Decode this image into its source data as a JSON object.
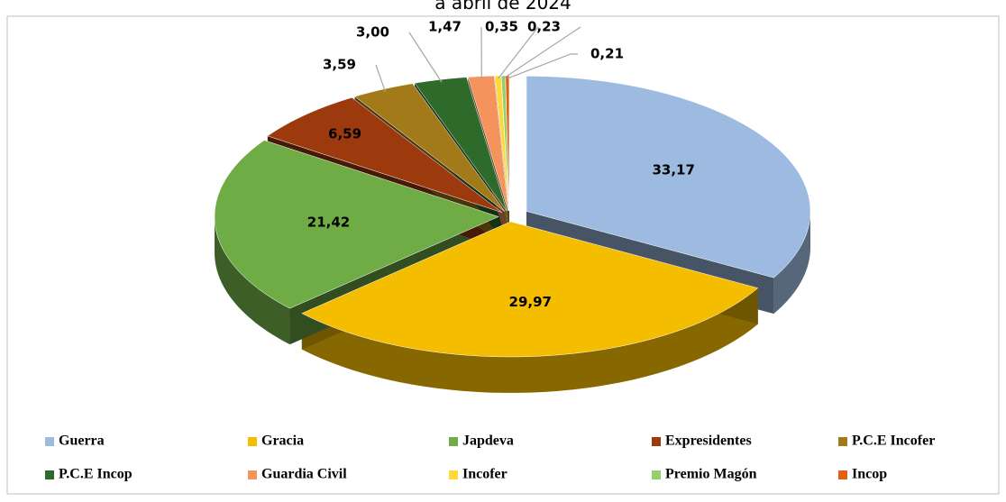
{
  "chart_data": {
    "type": "pie",
    "title": "a abril de 2024",
    "categories": [
      "Guerra",
      "Gracia",
      "Japdeva",
      "Expresidentes",
      "P.C.E Incofer",
      "P.C.E Incop",
      "Guardia Civil",
      "Incofer",
      "Premio Magón",
      "Incop"
    ],
    "values": [
      33.17,
      29.97,
      21.42,
      6.59,
      3.59,
      3.0,
      1.47,
      0.35,
      0.23,
      0.21
    ],
    "value_labels": [
      "33,17",
      "29,97",
      "21,42",
      "6,59",
      "3,59",
      "3,00",
      "1,47",
      "0,35",
      "0,23",
      "0,21"
    ],
    "colors": [
      "#9dbbe1",
      "#f5bd00",
      "#6fac46",
      "#9c3a0e",
      "#a37a19",
      "#2e6a2a",
      "#f4935c",
      "#ffd93a",
      "#93d06c",
      "#e2600f"
    ],
    "legend": "bottom"
  }
}
